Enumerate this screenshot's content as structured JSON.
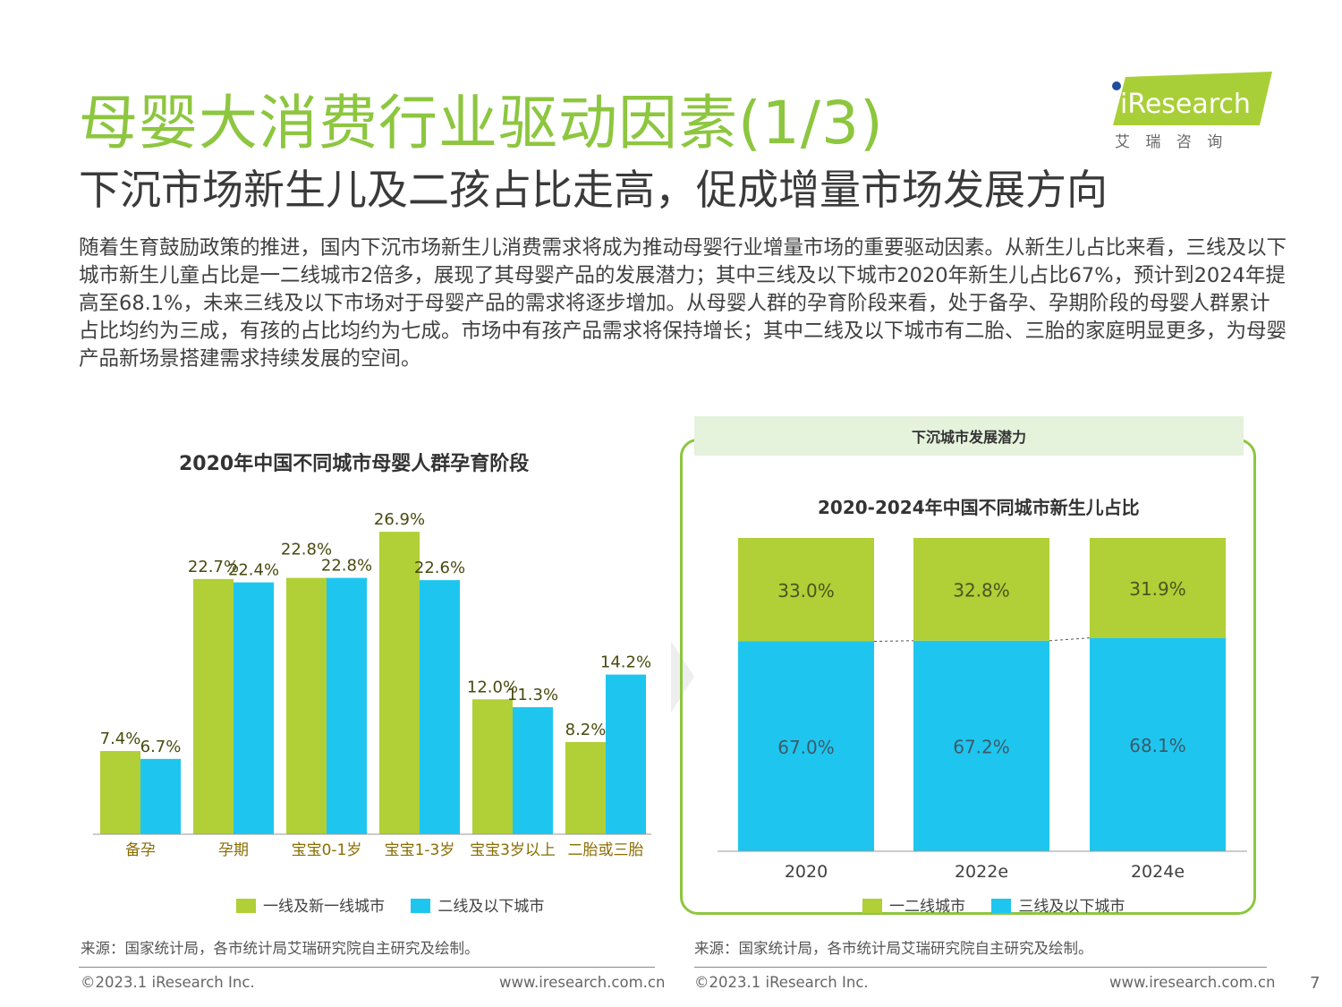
{
  "header": {
    "title": "母婴大消费行业驱动因素(1/3)",
    "subtitle": "下沉市场新生儿及二孩占比走高，促成增量市场发展方向",
    "logo_text": "iResearch",
    "logo_cn": "艾 瑞 咨 询"
  },
  "body_text": "随着生育鼓励政策的推进，国内下沉市场新生儿消费需求将成为推动母婴行业增量市场的重要驱动因素。从新生儿占比来看，三线及以下城市新生儿童占比是一二线城市2倍多，展现了其母婴产品的发展潜力；其中三线及以下城市2020年新生儿占比67%，预计到2024年提高至68.1%，未来三线及以下市场对于母婴产品的需求将逐步增加。从母婴人群的孕育阶段来看，处于备孕、孕期阶段的母婴人群累计占比均约为三成，有孩的占比均约为七成。市场中有孩产品需求将保持增长；其中二线及以下城市有二胎、三胎的家庭明显更多，为母婴产品新场景搭建需求持续发展的空间。",
  "panel": {
    "header": "下沉城市发展潜力"
  },
  "colors": {
    "green": "#b1cf36",
    "blue": "#1ec6ef",
    "accent": "#8dc63f"
  },
  "chart_data": [
    {
      "type": "bar",
      "title": "2020年中国不同城市母婴人群孕育阶段",
      "categories": [
        "备孕",
        "孕期",
        "宝宝0-1岁",
        "宝宝1-3岁",
        "宝宝3岁以上",
        "二胎或三胎"
      ],
      "series": [
        {
          "name": "一线及新一线城市",
          "values": [
            7.4,
            22.7,
            22.8,
            26.9,
            12.0,
            8.2
          ],
          "labels": [
            "7.4%",
            "22.7%",
            "22.8%",
            "26.9%",
            "12.0%",
            "8.2%"
          ]
        },
        {
          "name": "二线及以下城市",
          "values": [
            6.7,
            22.4,
            22.8,
            22.6,
            11.3,
            14.2
          ],
          "labels": [
            "6.7%",
            "22.4%",
            "22.8%",
            "22.6%",
            "11.3%",
            "14.2%"
          ]
        }
      ],
      "ylim": [
        0,
        28.5
      ],
      "legend": "bottom"
    },
    {
      "type": "bar",
      "stacked": true,
      "title": "2020-2024年中国不同城市新生儿占比",
      "categories": [
        "2020",
        "2022e",
        "2024e"
      ],
      "series": [
        {
          "name": "一二线城市",
          "values": [
            33.0,
            32.8,
            31.9
          ],
          "labels": [
            "33.0%",
            "32.8%",
            "31.9%"
          ]
        },
        {
          "name": "三线及以下城市",
          "values": [
            67.0,
            67.2,
            68.1
          ],
          "labels": [
            "67.0%",
            "67.2%",
            "68.1%"
          ]
        }
      ],
      "ylim": [
        0,
        100
      ],
      "legend": "bottom"
    }
  ],
  "footer": {
    "source": "来源：国家统计局，各市统计局艾瑞研究院自主研究及绘制。",
    "copyright": "©2023.1 iResearch Inc.",
    "url": "www.iresearch.com.cn",
    "page": "7"
  }
}
